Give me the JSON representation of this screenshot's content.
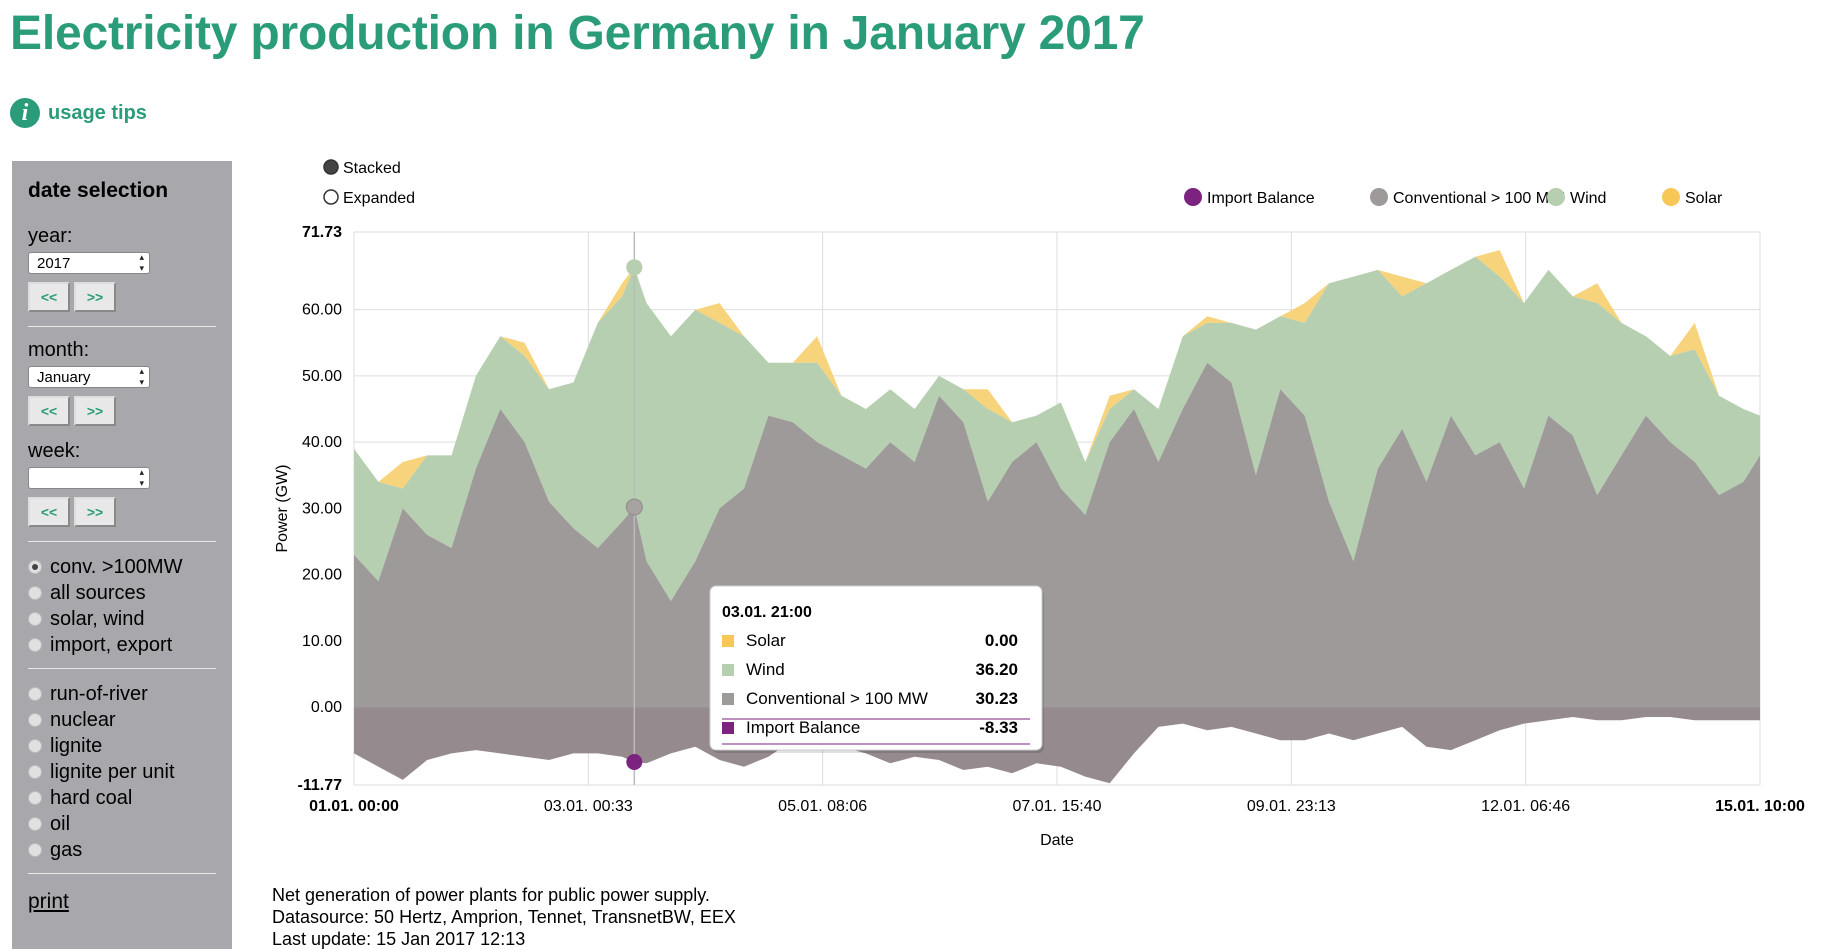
{
  "title": "Electricity production in Germany in January 2017",
  "usage_tips": "usage tips",
  "sidebar": {
    "heading": "date selection",
    "year_label": "year:",
    "year_value": "2017",
    "month_label": "month:",
    "month_value": "January",
    "week_label": "week:",
    "week_value": "",
    "prev_label": "<<",
    "next_label": ">>",
    "source_options": [
      {
        "label": "conv. >100MW",
        "checked": true
      },
      {
        "label": "all sources",
        "checked": false
      },
      {
        "label": "solar, wind",
        "checked": false
      },
      {
        "label": "import, export",
        "checked": false
      }
    ],
    "type_options": [
      "run-of-river",
      "nuclear",
      "lignite",
      "lignite per unit",
      "hard coal",
      "oil",
      "gas"
    ],
    "print_label": "print"
  },
  "chart_modes": [
    {
      "label": "Stacked",
      "selected": true
    },
    {
      "label": "Expanded",
      "selected": false
    }
  ],
  "footer": [
    "Net generation of power plants for public power supply.",
    "Datasource: 50 Hertz, Amprion, Tennet, TransnetBW, EEX",
    "Last update: 15 Jan 2017 12:13"
  ],
  "tooltip": {
    "title": "03.01. 21:00",
    "rows": [
      {
        "label": "Solar",
        "value": "0.00",
        "color": "#f7c857"
      },
      {
        "label": "Wind",
        "value": "36.20",
        "color": "#b6cfb0"
      },
      {
        "label": "Conventional > 100 MW",
        "value": "30.23",
        "color": "#9e9a9a"
      },
      {
        "label": "Import Balance",
        "value": "-8.33",
        "color": "#7b237f"
      }
    ]
  },
  "chart_data": {
    "type": "area",
    "stacked": true,
    "xlabel": "Date",
    "ylabel": "Power (GW)",
    "ylim": [
      -11.77,
      71.73
    ],
    "yticks": [
      "71.73",
      "60.00",
      "50.00",
      "40.00",
      "30.00",
      "20.00",
      "10.00",
      "0.00",
      "-11.77"
    ],
    "xticks": [
      "01.01. 00:00",
      "03.01. 00:33",
      "05.01. 08:06",
      "07.01. 15:40",
      "09.01. 23:13",
      "12.01. 06:46",
      "15.01. 10:00"
    ],
    "xrange_days": [
      0,
      14.42
    ],
    "legend": [
      {
        "name": "Import Balance",
        "color": "#7b237f"
      },
      {
        "name": "Conventional > 100 MW",
        "color": "#9e9a9a"
      },
      {
        "name": "Wind",
        "color": "#b6cfb0"
      },
      {
        "name": "Solar",
        "color": "#f7c857"
      }
    ],
    "x_days": [
      0,
      0.25,
      0.5,
      0.75,
      1,
      1.25,
      1.5,
      1.75,
      2,
      2.25,
      2.5,
      2.75,
      2.875,
      3,
      3.25,
      3.5,
      3.75,
      4,
      4.25,
      4.5,
      4.75,
      5,
      5.25,
      5.5,
      5.75,
      6,
      6.25,
      6.5,
      6.75,
      7,
      7.25,
      7.5,
      7.75,
      8,
      8.25,
      8.5,
      8.75,
      9,
      9.25,
      9.5,
      9.75,
      10,
      10.25,
      10.5,
      10.75,
      11,
      11.25,
      11.5,
      11.75,
      12,
      12.25,
      12.5,
      12.75,
      13,
      13.25,
      13.5,
      13.75,
      14,
      14.25,
      14.42
    ],
    "series": [
      {
        "name": "Import Balance",
        "values": [
          -7,
          -9,
          -11,
          -8,
          -7,
          -6.5,
          -7,
          -7.5,
          -8,
          -7,
          -7,
          -7.5,
          -8.3,
          -8.5,
          -7,
          -6,
          -8,
          -9,
          -7.5,
          -5,
          -6,
          -6,
          -7,
          -8.5,
          -7.5,
          -8,
          -9.5,
          -9,
          -10,
          -8.5,
          -9,
          -10.5,
          -11.5,
          -7,
          -3,
          -2.5,
          -3.5,
          -3,
          -4,
          -5,
          -5,
          -4,
          -5,
          -4,
          -3,
          -6,
          -6.5,
          -5,
          -3.5,
          -2.5,
          -2,
          -1.5,
          -2,
          -2,
          -1.5,
          -1.5,
          -2,
          -2,
          -2,
          -2
        ]
      },
      {
        "name": "Conventional > 100 MW",
        "values": [
          23,
          19,
          30,
          26,
          24,
          36,
          45,
          40,
          31,
          27,
          24,
          28,
          30.2,
          22,
          16,
          22,
          30,
          33,
          44,
          43,
          40,
          38,
          36,
          40,
          37,
          47,
          43,
          31,
          37,
          40,
          33,
          29,
          40,
          45,
          37,
          45,
          52,
          49,
          35,
          48,
          44,
          31,
          22,
          36,
          42,
          34,
          44,
          38,
          40,
          33,
          44,
          41,
          32,
          38,
          44,
          40,
          37,
          32,
          34,
          38
        ]
      },
      {
        "name": "Wind",
        "values": [
          16,
          15,
          3,
          12,
          14,
          14,
          11,
          13,
          17,
          22,
          34,
          34,
          36.2,
          39,
          40,
          38,
          28,
          23,
          8,
          9,
          12,
          9,
          9,
          8,
          8,
          3,
          5,
          14,
          6,
          4,
          13,
          8,
          5,
          3,
          8,
          11,
          6,
          9,
          22,
          11,
          14,
          33,
          43,
          30,
          20,
          30,
          22,
          30,
          25,
          28,
          22,
          21,
          29,
          20,
          12,
          13,
          17,
          15,
          11,
          6
        ]
      },
      {
        "name": "Solar",
        "values": [
          0,
          0,
          4,
          0,
          0,
          0,
          0,
          2,
          0,
          0,
          0,
          2,
          0,
          0,
          0,
          0,
          3,
          0,
          0,
          0,
          4,
          0,
          0,
          0,
          0,
          0,
          0,
          3,
          0,
          0,
          0,
          0,
          2,
          0,
          0,
          0,
          1,
          0,
          0,
          0,
          3,
          0,
          0,
          0,
          3,
          0,
          0,
          0,
          4,
          0,
          0,
          0,
          3,
          0,
          0,
          0,
          4,
          0,
          0,
          0
        ]
      }
    ],
    "hover": {
      "x_days": 2.875,
      "label": "03.01. 21:00"
    }
  }
}
